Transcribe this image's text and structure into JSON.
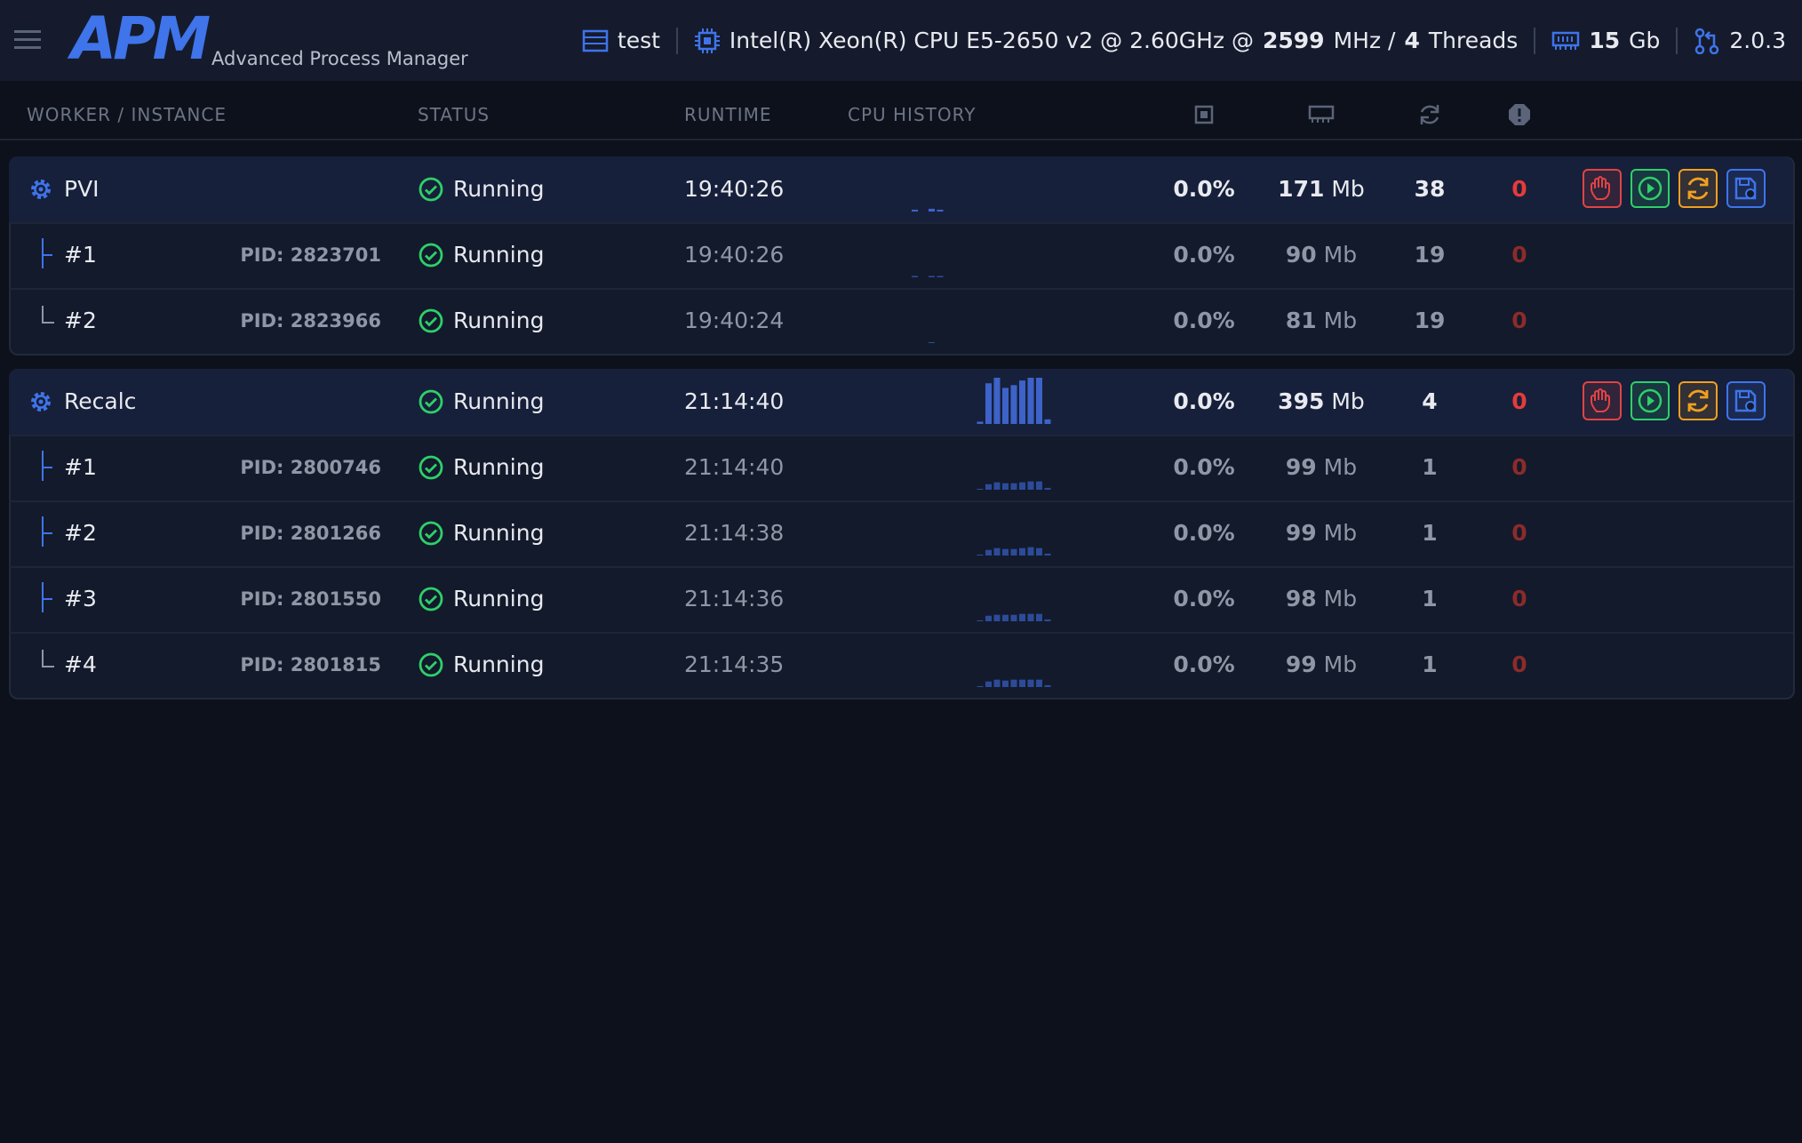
{
  "header": {
    "logo": "APM",
    "subtitle": "Advanced Process Manager",
    "env": "test",
    "cpu_model": "Intel(R) Xeon(R) CPU E5-2650 v2 @ 2.60GHz @",
    "cpu_mhz": "2599",
    "mhz_unit": "MHz /",
    "threads": "4",
    "threads_label": "Threads",
    "memory": "15",
    "memory_unit": "Gb",
    "version": "2.0.3"
  },
  "columns": {
    "worker": "WORKER / INSTANCE",
    "status": "STATUS",
    "runtime": "RUNTIME",
    "cpu_history": "CPU HISTORY"
  },
  "workers": [
    {
      "name": "PVI",
      "status": "Running",
      "runtime": "19:40:26",
      "cpu": "0.0%",
      "memory": "171",
      "memory_unit": "Mb",
      "restarts": "38",
      "errors": "0",
      "cpu_history": [
        0,
        0,
        0,
        4,
        0,
        6,
        4,
        0,
        0
      ],
      "instances": [
        {
          "name": "#1",
          "pid": "PID: 2823701",
          "status": "Running",
          "runtime": "19:40:26",
          "cpu": "0.0%",
          "memory": "90",
          "memory_unit": "Mb",
          "restarts": "19",
          "errors": "0",
          "cpu_history": [
            0,
            0,
            0,
            3,
            0,
            3,
            3,
            0,
            0
          ]
        },
        {
          "name": "#2",
          "pid": "PID: 2823966",
          "status": "Running",
          "runtime": "19:40:24",
          "cpu": "0.0%",
          "memory": "81",
          "memory_unit": "Mb",
          "restarts": "19",
          "errors": "0",
          "cpu_history": [
            0,
            0,
            0,
            0,
            0,
            2,
            0,
            0,
            0
          ]
        }
      ]
    },
    {
      "name": "Recalc",
      "status": "Running",
      "runtime": "21:14:40",
      "cpu": "0.0%",
      "memory": "395",
      "memory_unit": "Mb",
      "restarts": "4",
      "errors": "0",
      "cpu_history": [
        5,
        88,
        100,
        78,
        84,
        94,
        100,
        100,
        10
      ],
      "instances": [
        {
          "name": "#1",
          "pid": "PID: 2800746",
          "status": "Running",
          "runtime": "21:14:40",
          "cpu": "0.0%",
          "memory": "99",
          "memory_unit": "Mb",
          "restarts": "1",
          "errors": "0",
          "cpu_history": [
            2,
            12,
            16,
            14,
            14,
            16,
            18,
            18,
            4
          ]
        },
        {
          "name": "#2",
          "pid": "PID: 2801266",
          "status": "Running",
          "runtime": "21:14:38",
          "cpu": "0.0%",
          "memory": "99",
          "memory_unit": "Mb",
          "restarts": "1",
          "errors": "0",
          "cpu_history": [
            2,
            12,
            16,
            14,
            14,
            16,
            18,
            16,
            4
          ]
        },
        {
          "name": "#3",
          "pid": "PID: 2801550",
          "status": "Running",
          "runtime": "21:14:36",
          "cpu": "0.0%",
          "memory": "98",
          "memory_unit": "Mb",
          "restarts": "1",
          "errors": "0",
          "cpu_history": [
            2,
            12,
            14,
            14,
            14,
            16,
            16,
            16,
            4
          ]
        },
        {
          "name": "#4",
          "pid": "PID: 2801815",
          "status": "Running",
          "runtime": "21:14:35",
          "cpu": "0.0%",
          "memory": "99",
          "memory_unit": "Mb",
          "restarts": "1",
          "errors": "0",
          "cpu_history": [
            2,
            12,
            16,
            14,
            16,
            16,
            16,
            16,
            4
          ]
        }
      ]
    }
  ]
}
